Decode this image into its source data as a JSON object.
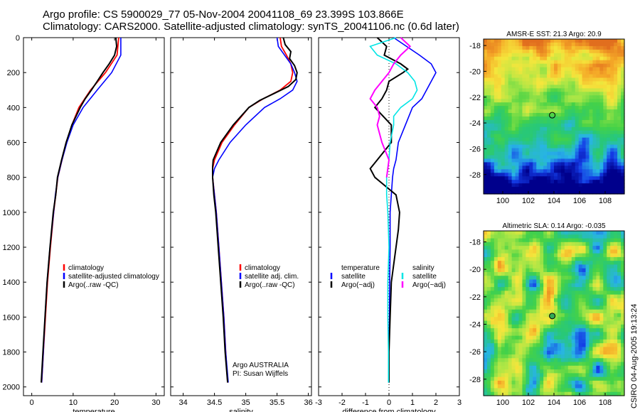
{
  "header": {
    "line1": "Argo profile: CS 5900029_77 05-Nov-2004 20041108_69 23.399S 103.866E",
    "line2": "Climatology: CARS2000. Satellite-adjusted climatology: synTS_20041106.nc (0.6d later)"
  },
  "footer_credit": "CSIRO 04-Aug-2005 19:13:24",
  "colors": {
    "climatology": "#ff0000",
    "satellite": "#0000ff",
    "argo": "#000000",
    "salinity_satellite": "#00e5e5",
    "salinity_argo": "#ff00ff"
  },
  "chart_data": [
    {
      "type": "line",
      "panel": "temperature",
      "xlabel": "temperature",
      "ylabel": "",
      "xlim": [
        -2,
        32
      ],
      "ylim": [
        2050,
        0
      ],
      "x_ticks": [
        0,
        10,
        20,
        30
      ],
      "y_ticks": [
        0,
        200,
        400,
        600,
        800,
        1000,
        1200,
        1400,
        1600,
        1800,
        2000
      ],
      "legend": [
        "climatology",
        "satellite-adjusted climatology",
        "Argo(..raw -QC)"
      ],
      "legend_position": "bottom-right",
      "series": [
        {
          "name": "climatology",
          "color": "#ff0000",
          "depth": [
            0,
            100,
            200,
            300,
            400,
            500,
            600,
            700,
            800,
            900,
            1000,
            1200,
            1400,
            1600,
            1800,
            1975
          ],
          "values": [
            21.0,
            20.6,
            17.8,
            14.2,
            11.4,
            9.7,
            8.4,
            7.3,
            6.3,
            5.8,
            5.3,
            4.5,
            3.8,
            3.3,
            2.8,
            2.4
          ]
        },
        {
          "name": "satellite-adjusted climatology",
          "color": "#0000ff",
          "depth": [
            0,
            100,
            200,
            300,
            400,
            500,
            600,
            700,
            800,
            900,
            1000,
            1200,
            1400,
            1600,
            1800,
            1975
          ],
          "values": [
            21.5,
            21.5,
            19.3,
            15.8,
            12.4,
            10.0,
            8.5,
            7.3,
            6.3,
            5.7,
            5.3,
            4.4,
            3.7,
            3.2,
            2.8,
            2.4
          ]
        },
        {
          "name": "Argo(..raw -QC)",
          "color": "#000000",
          "depth": [
            0,
            50,
            100,
            150,
            200,
            250,
            300,
            350,
            400,
            500,
            600,
            700,
            800,
            900,
            1000,
            1200,
            1400,
            1600,
            1800,
            1975
          ],
          "values": [
            20.3,
            20.5,
            20.0,
            18.7,
            17.2,
            15.8,
            14.4,
            12.9,
            11.7,
            9.7,
            8.3,
            7.2,
            6.2,
            5.8,
            5.2,
            4.4,
            3.7,
            3.2,
            2.7,
            2.3
          ]
        }
      ]
    },
    {
      "type": "line",
      "panel": "salinity",
      "xlabel": "salinity",
      "ylabel": "",
      "xlim": [
        33.8,
        36.05
      ],
      "ylim": [
        2050,
        0
      ],
      "x_ticks": [
        34,
        34.5,
        35,
        35.5,
        36
      ],
      "legend": [
        "climatology",
        "satellite adj. clim.",
        "Argo(..raw -QC)"
      ],
      "legend_position": "bottom-right",
      "annotation": [
        "Argo AUSTRALIA",
        "PI: Susan Wijffels"
      ],
      "series": [
        {
          "name": "climatology",
          "color": "#ff0000",
          "depth": [
            0,
            50,
            100,
            150,
            200,
            250,
            300,
            350,
            400,
            500,
            600,
            700,
            750,
            800,
            900,
            1000,
            1200,
            1400,
            1600,
            1800,
            1975
          ],
          "values": [
            35.55,
            35.57,
            35.65,
            35.72,
            35.75,
            35.72,
            35.55,
            35.28,
            35.05,
            34.82,
            34.62,
            34.5,
            34.47,
            34.47,
            34.5,
            34.53,
            34.57,
            34.61,
            34.65,
            34.68,
            34.71
          ]
        },
        {
          "name": "satellite adj. clim.",
          "color": "#0000ff",
          "depth": [
            0,
            50,
            100,
            150,
            200,
            250,
            300,
            350,
            400,
            500,
            600,
            700,
            750,
            800,
            900,
            1000,
            1200,
            1400,
            1600,
            1800,
            1975
          ],
          "values": [
            35.5,
            35.52,
            35.62,
            35.72,
            35.78,
            35.82,
            35.75,
            35.55,
            35.3,
            35.0,
            34.75,
            34.57,
            34.5,
            34.47,
            34.5,
            34.53,
            34.57,
            34.61,
            34.65,
            34.68,
            34.72
          ]
        },
        {
          "name": "Argo(..raw -QC)",
          "color": "#000000",
          "depth": [
            0,
            40,
            80,
            120,
            160,
            200,
            240,
            280,
            320,
            360,
            400,
            500,
            600,
            700,
            740,
            800,
            900,
            1000,
            1200,
            1400,
            1600,
            1800,
            1975
          ],
          "values": [
            35.6,
            35.63,
            35.72,
            35.7,
            35.78,
            35.82,
            35.8,
            35.68,
            35.45,
            35.22,
            35.05,
            34.8,
            34.6,
            34.48,
            34.47,
            34.47,
            34.49,
            34.52,
            34.56,
            34.6,
            34.64,
            34.67,
            34.71
          ]
        }
      ]
    },
    {
      "type": "line",
      "panel": "difference",
      "xlabel": "difference from climatology",
      "ylabel": "",
      "xlim": [
        -3,
        3
      ],
      "ylim": [
        2050,
        0
      ],
      "x_ticks": [
        -3,
        -2,
        -1,
        0,
        1,
        2,
        3
      ],
      "legend": [
        "temperature",
        "satellite",
        "Argo(~adj)",
        "salinity",
        "satellite",
        "Argo(~adj)"
      ],
      "legend_position": "bottom-right",
      "series": [
        {
          "name": "satellite",
          "variable": "temperature",
          "color": "#0000ff",
          "depth": [
            0,
            100,
            150,
            200,
            250,
            300,
            350,
            400,
            500,
            600,
            700,
            750,
            800,
            900,
            1000,
            1200,
            1400,
            1600,
            1800,
            1975
          ],
          "values": [
            0.2,
            1.3,
            1.8,
            2.0,
            1.8,
            1.6,
            1.4,
            1.0,
            0.7,
            0.4,
            0.3,
            0.2,
            0.15,
            0.1,
            0.05,
            0.05,
            0.03,
            0.02,
            0.0,
            0.0
          ]
        },
        {
          "name": "Argo(~adj)",
          "variable": "temperature",
          "color": "#000000",
          "depth": [
            0,
            50,
            100,
            150,
            180,
            200,
            250,
            300,
            350,
            400,
            500,
            600,
            700,
            750,
            800,
            900,
            1000,
            1100,
            1200,
            1300,
            1400,
            1600,
            1800,
            1975
          ],
          "values": [
            -0.5,
            -0.1,
            -0.2,
            0.5,
            0.8,
            0.6,
            0.0,
            -0.1,
            -0.3,
            -0.6,
            0.1,
            0.1,
            -0.5,
            -0.8,
            -0.6,
            0.3,
            0.45,
            0.4,
            0.3,
            0.2,
            0.1,
            0.05,
            0.0,
            0.0
          ]
        },
        {
          "name": "satellite",
          "variable": "salinity",
          "color": "#00e5e5",
          "depth": [
            0,
            50,
            100,
            150,
            200,
            250,
            300,
            350,
            400,
            450,
            500,
            600,
            700,
            800,
            900,
            1000,
            1200,
            1400,
            1600,
            1800,
            1975
          ],
          "values": [
            0.3,
            -0.8,
            -0.5,
            0.3,
            0.8,
            1.1,
            1.2,
            1.0,
            0.5,
            0.2,
            0.2,
            0.05,
            0.0,
            -0.1,
            -0.1,
            -0.05,
            0.0,
            -0.05,
            -0.05,
            -0.02,
            -0.02
          ]
        },
        {
          "name": "Argo(~adj)",
          "variable": "salinity",
          "color": "#ff00ff",
          "depth": [
            0,
            50,
            100,
            150,
            200,
            250,
            300,
            350,
            400,
            450,
            500,
            600,
            700,
            800
          ],
          "values": [
            0.5,
            0.9,
            0.5,
            0.2,
            0.0,
            -0.3,
            -0.6,
            -0.8,
            -0.5,
            -0.4,
            -0.5,
            -0.3,
            0.0,
            -0.1
          ]
        }
      ]
    },
    {
      "type": "heatmap",
      "panel": "sst_map",
      "title": "AMSR-E SST: 21.3 Argo: 20.9",
      "xlim": [
        98.5,
        109.5
      ],
      "ylim": [
        -29.5,
        -17.5
      ],
      "x_ticks": [
        100,
        102,
        104,
        106,
        108
      ],
      "y_ticks": [
        -18,
        -20,
        -22,
        -24,
        -26,
        -28
      ],
      "marker": {
        "lon": 103.866,
        "lat": -23.399
      }
    },
    {
      "type": "heatmap",
      "panel": "sla_map",
      "title": "Altimetric SLA: 0.14 Argo: -0.035",
      "xlim": [
        98.5,
        109.5
      ],
      "ylim": [
        -29.2,
        -17.2
      ],
      "x_ticks": [
        100,
        102,
        104,
        106,
        108
      ],
      "y_ticks": [
        -18,
        -20,
        -22,
        -24,
        -26,
        -28
      ],
      "marker": {
        "lon": 103.866,
        "lat": -23.399
      }
    }
  ]
}
